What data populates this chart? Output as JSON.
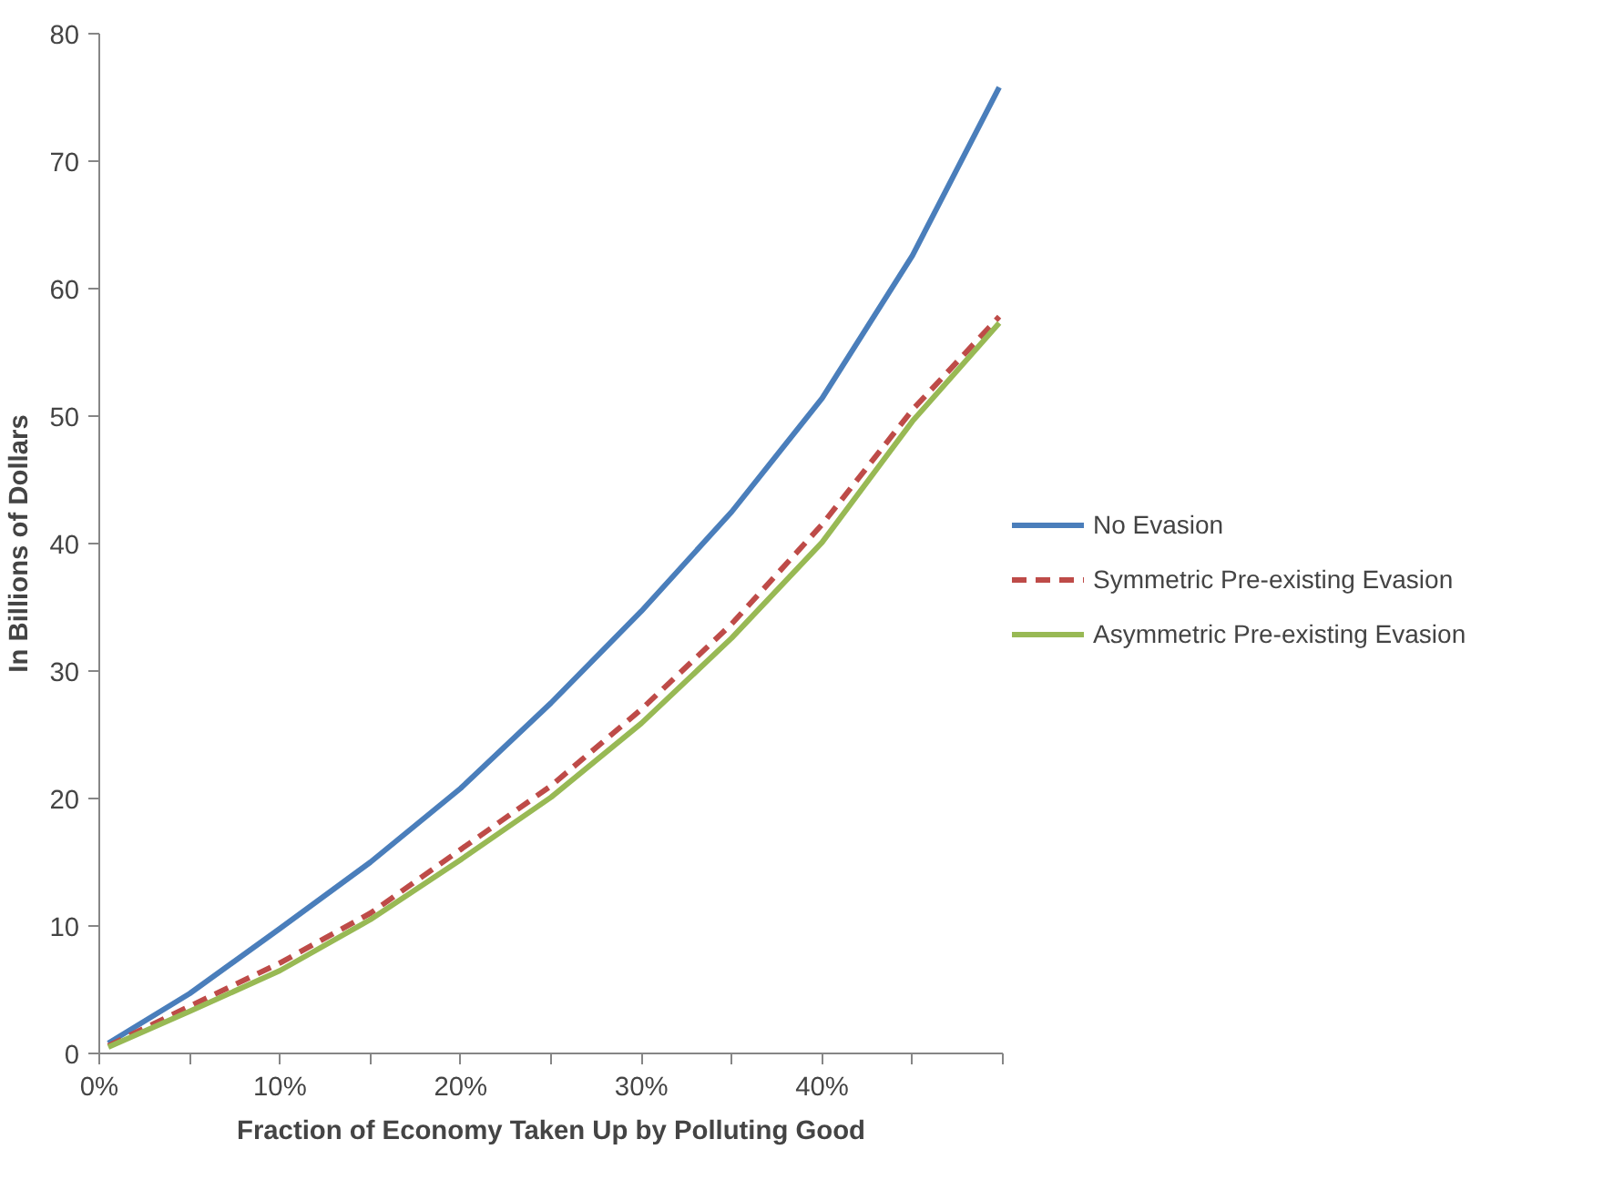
{
  "chart_data": {
    "type": "line",
    "xlabel": "Fraction of Economy Taken Up by Polluting Good",
    "ylabel": "In Billions of Dollars",
    "x": [
      0.5,
      5,
      10,
      15,
      20,
      25,
      30,
      35,
      40,
      45,
      49.8
    ],
    "series": [
      {
        "name": "No Evasion",
        "color": "#4a7ebb",
        "line_style": "solid",
        "values": [
          0.8,
          4.7,
          9.8,
          15,
          20.8,
          27.5,
          34.7,
          42.5,
          51.4,
          62.6,
          75.8
        ]
      },
      {
        "name": "Symmetric Pre-existing Evasion",
        "color": "#be4b48",
        "line_style": "dashed",
        "values": [
          0.6,
          3.7,
          7.1,
          11,
          16,
          21,
          27,
          33.7,
          41.5,
          50.5,
          57.8
        ]
      },
      {
        "name": "Asymmetric Pre-existing Evasion",
        "color": "#98b954",
        "line_style": "solid",
        "values": [
          0.5,
          3.3,
          6.5,
          10.5,
          15.2,
          20.1,
          25.9,
          32.6,
          40.1,
          49.6,
          57.3
        ]
      }
    ],
    "xlim": [
      0,
      50
    ],
    "ylim": [
      0,
      80
    ],
    "xticks": [
      {
        "value": 0,
        "label": "0%"
      },
      {
        "value": 5,
        "label": null
      },
      {
        "value": 10,
        "label": "10%"
      },
      {
        "value": 15,
        "label": null
      },
      {
        "value": 20,
        "label": "20%"
      },
      {
        "value": 25,
        "label": null
      },
      {
        "value": 30,
        "label": "30%"
      },
      {
        "value": 35,
        "label": null
      },
      {
        "value": 40,
        "label": "40%"
      },
      {
        "value": 45,
        "label": null
      },
      {
        "value": 50,
        "label": null
      }
    ],
    "yticks": [
      0,
      10,
      20,
      30,
      40,
      50,
      60,
      70,
      80
    ],
    "grid": false,
    "legend": "right",
    "marker": "none"
  }
}
